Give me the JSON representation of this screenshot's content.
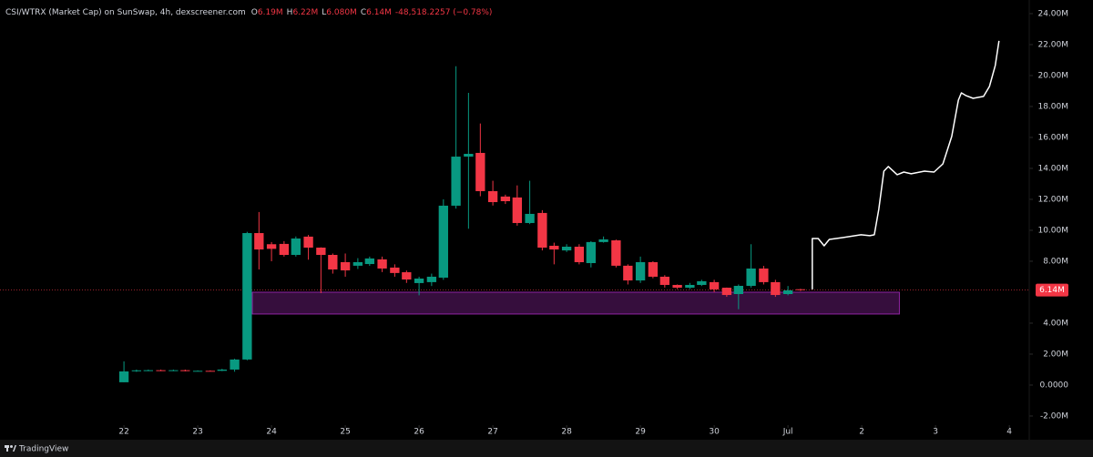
{
  "chart_data": {
    "type": "candlestick",
    "header": {
      "symbol": "CSI/WTRX (Market Cap) on SunSwap, 4h, dexscreener.com",
      "ohlc": [
        {
          "label": "O",
          "value": "6.19M"
        },
        {
          "label": "H",
          "value": "6.22M"
        },
        {
          "label": "L",
          "value": "6.080M"
        },
        {
          "label": "C",
          "value": "6.14M"
        }
      ],
      "change": "-48,518.2257 (−0.78%)"
    },
    "footer": "TradingView",
    "up_color": "#089981",
    "down_color": "#f23645",
    "x": [
      22,
      22.17,
      22.33,
      22.5,
      22.67,
      22.83,
      23,
      23.17,
      23.33,
      23.5,
      23.67,
      23.83,
      24,
      24.17,
      24.33,
      24.5,
      24.67,
      24.83,
      25,
      25.17,
      25.33,
      25.5,
      25.67,
      25.83,
      26,
      26.17,
      26.33,
      26.5,
      26.67,
      26.83,
      27,
      27.17,
      27.33,
      27.5,
      27.67,
      27.83,
      28,
      28.17,
      28.33,
      28.5,
      28.67,
      28.83,
      29,
      29.17,
      29.33,
      29.5,
      29.67,
      29.83,
      30,
      30.17,
      30.33,
      30.5,
      30.67,
      30.83,
      31,
      31.17
    ],
    "open": [
      0.18,
      0.9,
      0.92,
      0.96,
      0.94,
      0.96,
      0.9,
      0.92,
      0.92,
      1.0,
      1.65,
      9.82,
      9.1,
      9.12,
      8.41,
      9.59,
      8.88,
      8.41,
      7.94,
      7.71,
      7.82,
      8.12,
      7.59,
      7.29,
      6.59,
      6.65,
      6.94,
      11.59,
      14.76,
      15.0,
      12.53,
      12.18,
      12.12,
      10.47,
      11.12,
      9.0,
      8.7,
      8.94,
      7.88,
      9.24,
      9.35,
      7.71,
      6.76,
      7.94,
      7.0,
      6.47,
      6.29,
      6.47,
      6.65,
      6.29,
      5.88,
      6.41,
      7.53,
      6.65,
      5.88,
      6.19
    ],
    "high": [
      1.53,
      1.0,
      1.0,
      1.0,
      1.0,
      1.0,
      0.95,
      0.95,
      1.05,
      1.7,
      9.9,
      11.18,
      9.24,
      9.3,
      9.6,
      9.7,
      8.9,
      8.5,
      8.5,
      8.2,
      8.3,
      8.3,
      7.8,
      7.4,
      7.0,
      7.2,
      12.0,
      20.6,
      18.88,
      16.9,
      13.2,
      12.3,
      12.9,
      13.2,
      11.3,
      9.2,
      9.1,
      9.1,
      9.3,
      9.6,
      9.4,
      7.8,
      8.3,
      8.0,
      7.1,
      6.5,
      6.6,
      6.8,
      6.8,
      6.3,
      6.5,
      9.1,
      7.7,
      6.8,
      6.4,
      6.22
    ],
    "low": [
      0.18,
      0.85,
      0.9,
      0.9,
      0.9,
      0.88,
      0.88,
      0.88,
      0.9,
      0.86,
      1.6,
      7.47,
      8.0,
      8.3,
      8.3,
      8.1,
      5.94,
      7.2,
      7.0,
      7.5,
      7.7,
      7.3,
      7.0,
      6.6,
      5.8,
      6.4,
      6.8,
      11.4,
      10.1,
      12.2,
      11.6,
      11.7,
      10.3,
      10.4,
      8.7,
      7.8,
      8.6,
      7.8,
      7.6,
      9.2,
      7.6,
      6.5,
      6.6,
      6.9,
      6.3,
      6.2,
      6.2,
      6.4,
      6.0,
      5.7,
      4.9,
      6.3,
      6.5,
      5.7,
      5.8,
      6.08
    ],
    "close": [
      0.88,
      0.95,
      0.96,
      0.94,
      0.96,
      0.9,
      0.92,
      0.9,
      1.0,
      1.65,
      9.82,
      8.76,
      8.8,
      8.41,
      9.47,
      8.88,
      8.41,
      7.47,
      7.41,
      7.94,
      8.18,
      7.53,
      7.24,
      6.82,
      6.88,
      7.0,
      11.59,
      14.76,
      14.94,
      12.53,
      11.82,
      11.88,
      10.47,
      11.06,
      8.88,
      8.76,
      8.94,
      7.94,
      9.24,
      9.41,
      7.71,
      6.76,
      7.94,
      7.0,
      6.47,
      6.29,
      6.47,
      6.71,
      6.18,
      5.82,
      6.41,
      7.53,
      6.65,
      5.82,
      6.12,
      6.14
    ],
    "last_price": {
      "value": 6.14,
      "label": "6.14M"
    },
    "zone": {
      "x": [
        23.74,
        32.51
      ],
      "y": [
        4.59,
        6.0
      ],
      "color": "#9c27b0"
    },
    "drawing": {
      "color": "#ffffff",
      "x": [
        31.33,
        31.33,
        31.41,
        31.49,
        31.56,
        31.74,
        31.99,
        32.11,
        32.17,
        32.23,
        32.3,
        32.36,
        32.48,
        32.57,
        32.67,
        32.85,
        32.98,
        33.1,
        33.22,
        33.31,
        33.35,
        33.41,
        33.51,
        33.65,
        33.73,
        33.81,
        33.86
      ],
      "values": [
        6.18,
        9.47,
        9.47,
        9.0,
        9.41,
        9.53,
        9.71,
        9.65,
        9.71,
        11.35,
        13.82,
        14.12,
        13.59,
        13.76,
        13.65,
        13.82,
        13.76,
        14.29,
        16.06,
        18.41,
        18.88,
        18.71,
        18.53,
        18.65,
        19.29,
        20.65,
        22.24
      ]
    },
    "xlim": [
      20.32,
      34.27
    ],
    "xticks": [
      22,
      23,
      24,
      25,
      26,
      27,
      28,
      29,
      30,
      {
        "value": 31,
        "label": "Jul"
      },
      {
        "value": 32,
        "label": "2"
      },
      {
        "value": 33,
        "label": "3"
      },
      {
        "value": 34,
        "label": "4"
      }
    ],
    "ylim": [
      -2.59,
      24.88
    ],
    "yticks": [
      {
        "value": 24,
        "label": "24.00M"
      },
      {
        "value": 22,
        "label": "22.00M"
      },
      {
        "value": 20,
        "label": "20.00M"
      },
      {
        "value": 18,
        "label": "18.00M"
      },
      {
        "value": 16,
        "label": "16.00M"
      },
      {
        "value": 14,
        "label": "14.00M"
      },
      {
        "value": 12,
        "label": "12.00M"
      },
      {
        "value": 10,
        "label": "10.00M"
      },
      {
        "value": 8,
        "label": "8.00M"
      },
      {
        "value": 4,
        "label": "4.00M"
      },
      {
        "value": 2,
        "label": "2.00M"
      },
      {
        "value": 0,
        "label": "0.0000"
      },
      {
        "value": -2,
        "label": "-2.00M"
      }
    ]
  }
}
